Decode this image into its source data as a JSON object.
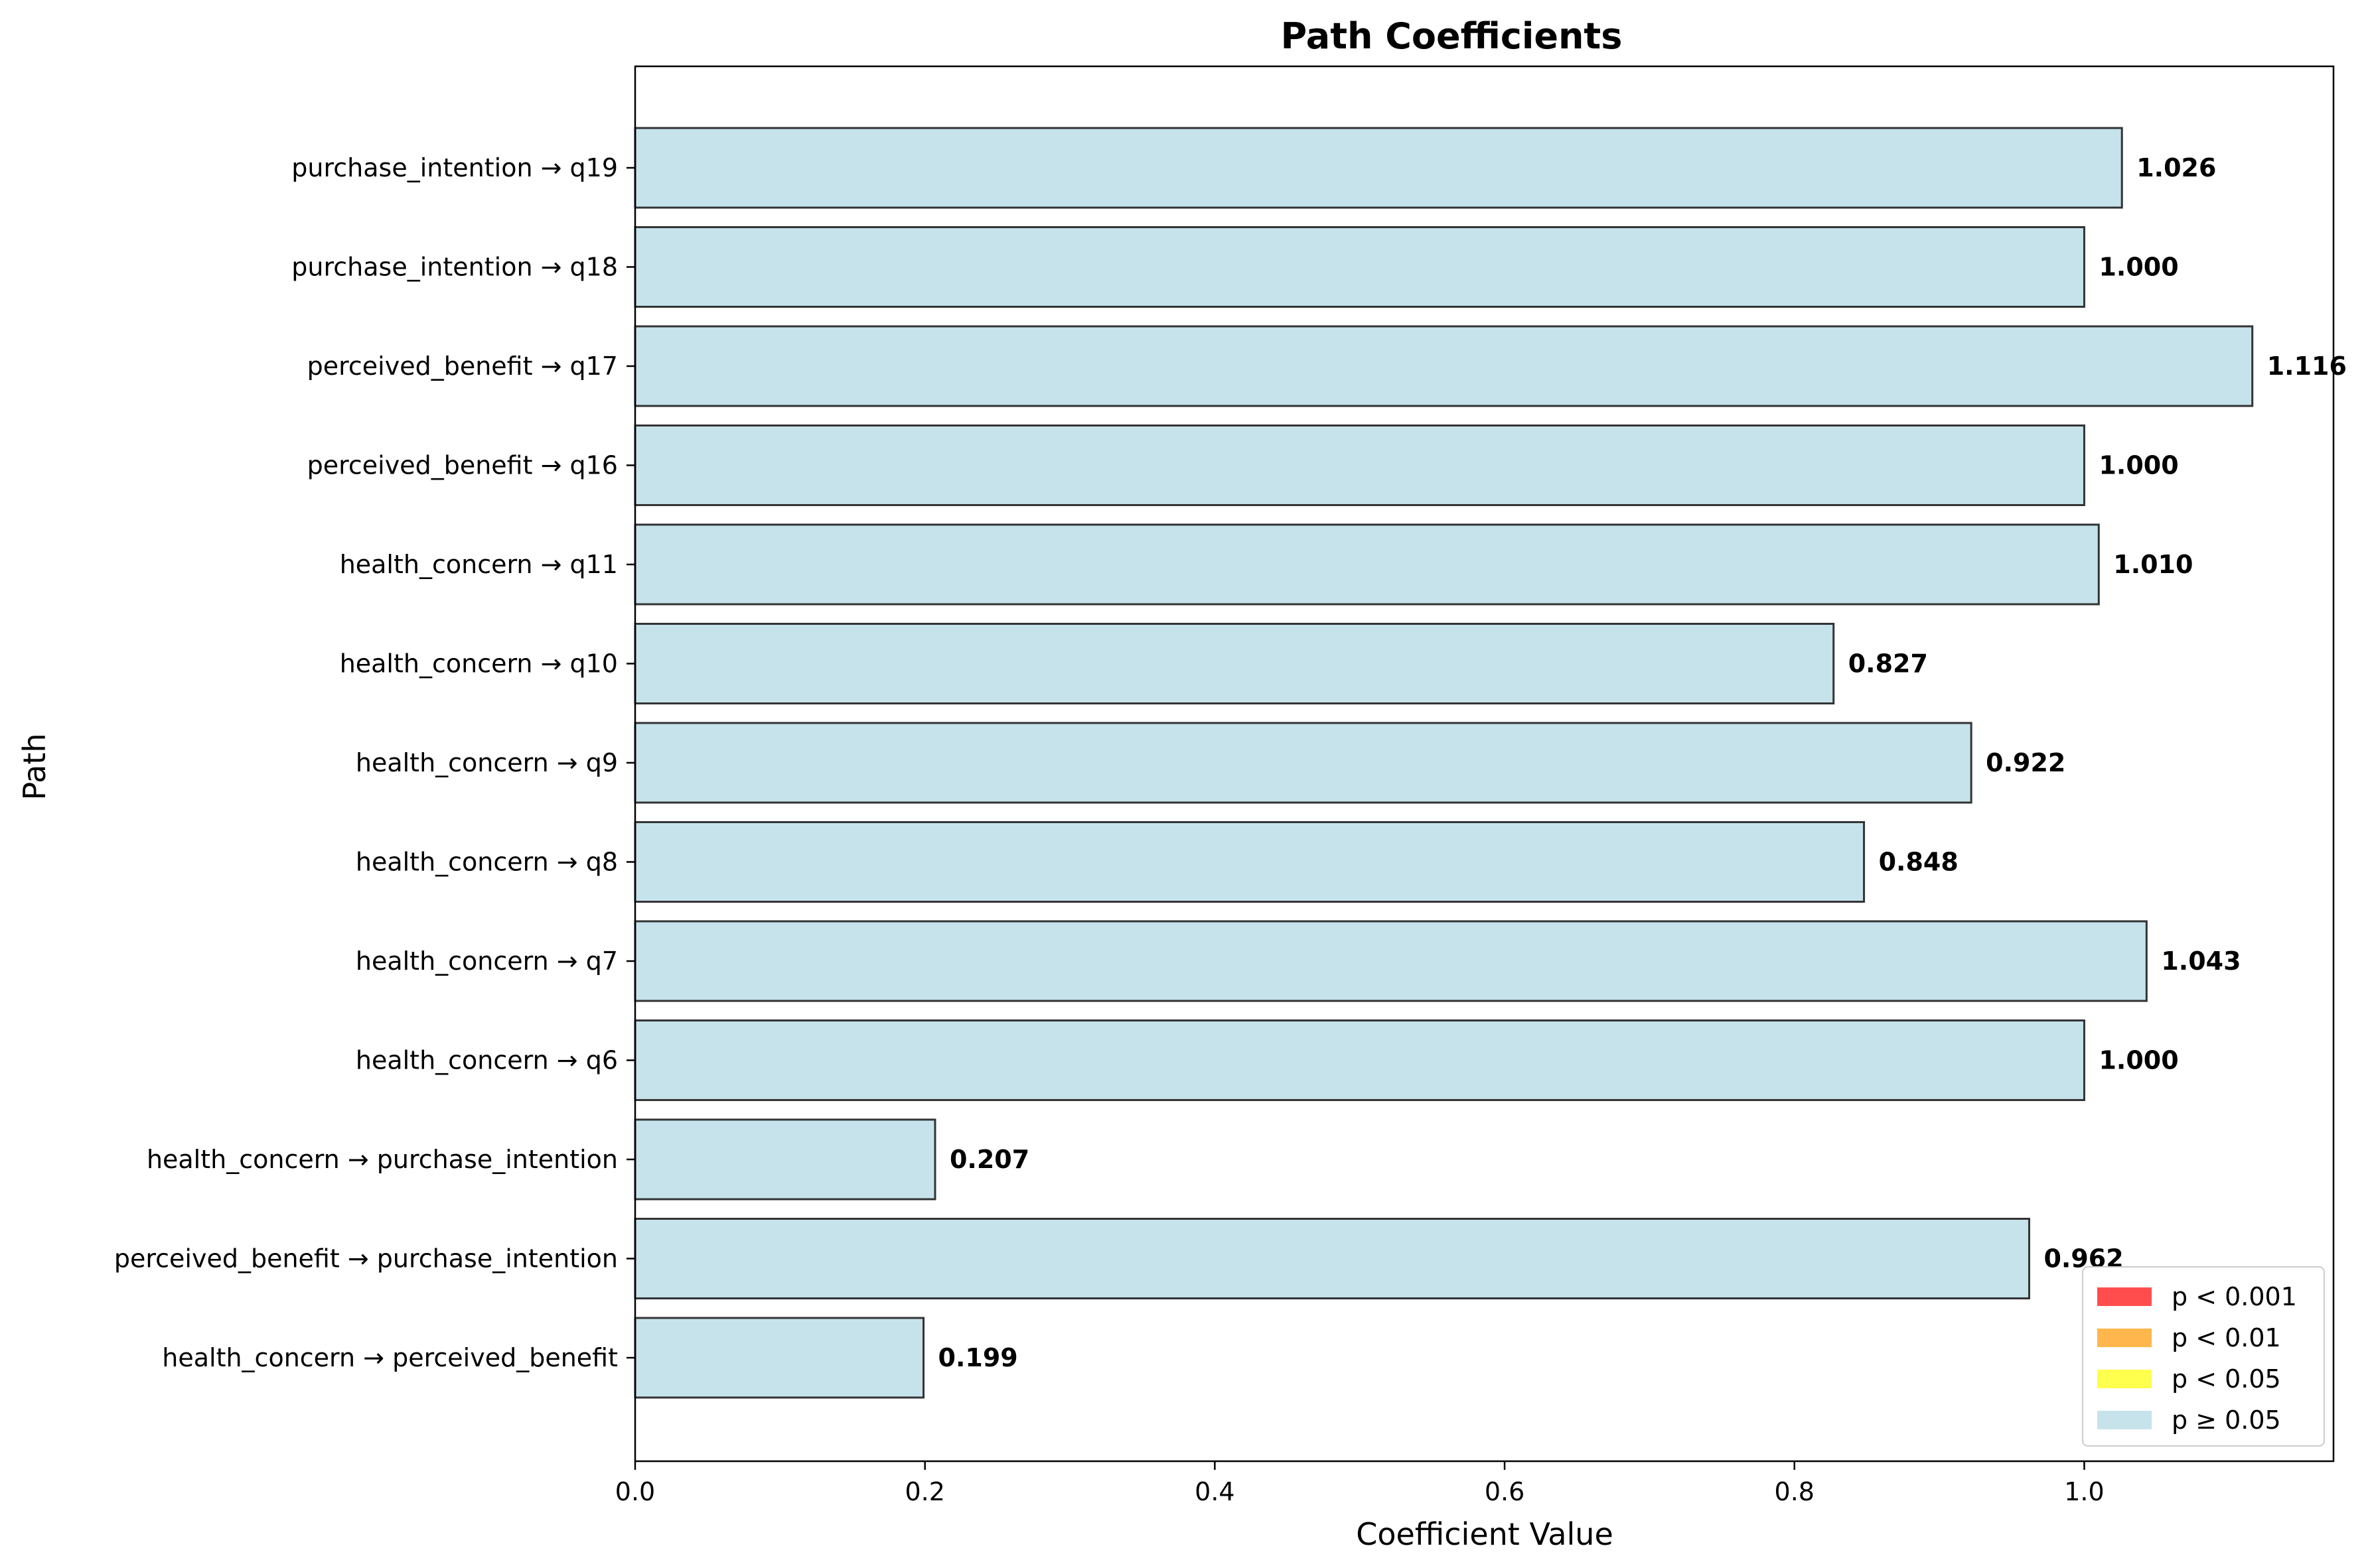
{
  "chart_data": {
    "type": "bar",
    "orientation": "horizontal",
    "title": "Path Coefficients",
    "xlabel": "Coefficient Value",
    "ylabel": "Path",
    "xlim": [
      0,
      1.172
    ],
    "x_ticks": [
      "0.0",
      "0.2",
      "0.4",
      "0.6",
      "0.8",
      "1.0"
    ],
    "x_tick_values": [
      0,
      0.2,
      0.4,
      0.6,
      0.8,
      1.0
    ],
    "grid": false,
    "bar_color": "#c6e3ec",
    "bar_edge_color": "#333333",
    "categories": [
      "health_concern → perceived_benefit",
      "perceived_benefit → purchase_intention",
      "health_concern → purchase_intention",
      "health_concern → q6",
      "health_concern → q7",
      "health_concern → q8",
      "health_concern → q9",
      "health_concern → q10",
      "health_concern → q11",
      "perceived_benefit → q16",
      "perceived_benefit → q17",
      "purchase_intention → q18",
      "purchase_intention → q19"
    ],
    "values": [
      0.199,
      0.962,
      0.207,
      1.0,
      1.043,
      0.848,
      0.922,
      0.827,
      1.01,
      1.0,
      1.116,
      1.0,
      1.026
    ],
    "value_labels": [
      "0.199",
      "0.962",
      "0.207",
      "1.000",
      "1.043",
      "0.848",
      "0.922",
      "0.827",
      "1.010",
      "1.000",
      "1.116",
      "1.000",
      "1.026"
    ],
    "legend": {
      "placement": "lower-right",
      "entries": [
        {
          "label": "p < 0.001",
          "color": "#ff4d4d"
        },
        {
          "label": "p < 0.01",
          "color": "#ffb74d"
        },
        {
          "label": "p < 0.05",
          "color": "#ffff4d"
        },
        {
          "label": "p ≥ 0.05",
          "color": "#c6e3ec"
        }
      ]
    }
  }
}
